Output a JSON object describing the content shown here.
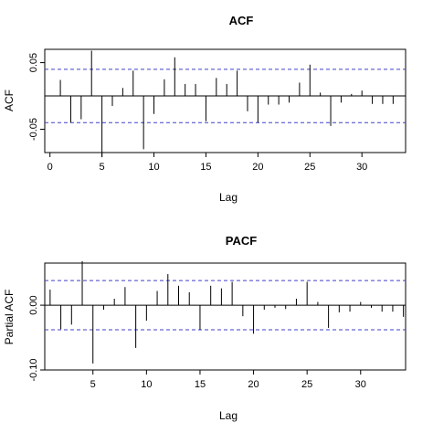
{
  "chart_data": [
    {
      "type": "bar",
      "title": "ACF",
      "xlabel": "Lag",
      "ylabel": "ACF",
      "xlim": [
        -0.5,
        34.2
      ],
      "ylim": [
        -0.085,
        0.07
      ],
      "xticks": [
        0,
        5,
        10,
        15,
        20,
        25,
        30
      ],
      "xtick_labels": [
        "0",
        "5",
        "10",
        "15",
        "20",
        "25",
        "30"
      ],
      "yticks": [
        0.05,
        -0.05
      ],
      "ytick_labels": [
        "0.05",
        "-0.05"
      ],
      "ci": 0.04,
      "lags": [
        1,
        2,
        3,
        4,
        5,
        6,
        7,
        8,
        9,
        10,
        11,
        12,
        13,
        14,
        15,
        16,
        17,
        18,
        19,
        20,
        21,
        22,
        23,
        24,
        25,
        26,
        27,
        28,
        29,
        30,
        31,
        32,
        33
      ],
      "values": [
        0.024,
        -0.04,
        -0.035,
        0.068,
        -0.092,
        -0.015,
        0.012,
        0.038,
        -0.08,
        -0.027,
        0.025,
        0.058,
        0.018,
        0.018,
        -0.038,
        0.027,
        0.018,
        0.038,
        -0.023,
        -0.04,
        -0.013,
        -0.013,
        -0.01,
        0.02,
        0.047,
        0.005,
        -0.045,
        -0.01,
        0.003,
        0.008,
        -0.012,
        -0.012,
        -0.012
      ]
    },
    {
      "type": "bar",
      "title": "PACF",
      "xlabel": "Lag",
      "ylabel": "Partial ACF",
      "xlim": [
        0.5,
        34.2
      ],
      "ylim": [
        -0.1,
        0.065
      ],
      "xticks": [
        5,
        10,
        15,
        20,
        25,
        30
      ],
      "xtick_labels": [
        "5",
        "10",
        "15",
        "20",
        "25",
        "30"
      ],
      "yticks": [
        0.0,
        -0.1
      ],
      "ytick_labels": [
        "0.00",
        "-0.10"
      ],
      "ci": 0.038,
      "lags": [
        1,
        2,
        3,
        4,
        5,
        6,
        7,
        8,
        9,
        10,
        11,
        12,
        13,
        14,
        15,
        16,
        17,
        18,
        19,
        20,
        21,
        22,
        23,
        24,
        25,
        26,
        27,
        28,
        29,
        30,
        31,
        32,
        33,
        34
      ],
      "values": [
        0.024,
        -0.037,
        -0.03,
        0.068,
        -0.09,
        -0.007,
        0.01,
        0.028,
        -0.066,
        -0.024,
        0.022,
        0.048,
        0.03,
        0.02,
        -0.038,
        0.03,
        0.026,
        0.036,
        -0.017,
        -0.044,
        -0.007,
        -0.004,
        -0.006,
        0.01,
        0.036,
        0.005,
        -0.035,
        -0.011,
        -0.01,
        0.005,
        -0.004,
        -0.01,
        -0.01,
        -0.018
      ]
    }
  ],
  "colors": {
    "ci_line": "#4040c8",
    "bars": "#000000",
    "box": "#000000"
  }
}
